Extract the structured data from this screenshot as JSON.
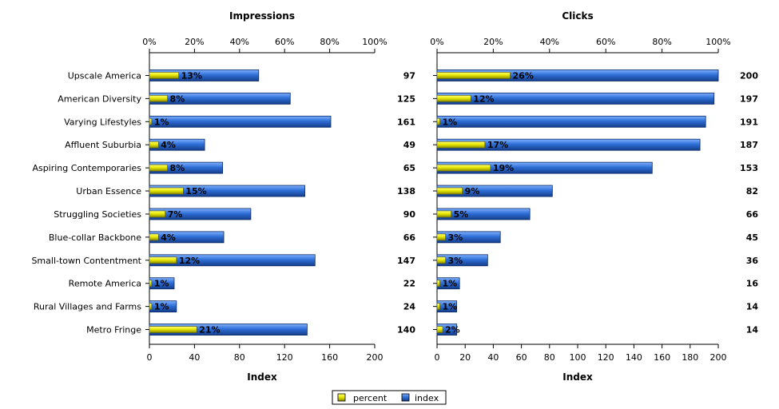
{
  "chart_data": {
    "type": "bar",
    "legend": {
      "position": "bottom",
      "entries": [
        {
          "name": "percent",
          "color": "#e8e800"
        },
        {
          "name": "index",
          "color": "#2f6fd6"
        }
      ]
    },
    "categories": [
      "Upscale America",
      "American Diversity",
      "Varying Lifestyles",
      "Affluent Suburbia",
      "Aspiring Contemporaries",
      "Urban Essence",
      "Struggling Societies",
      "Blue-collar Backbone",
      "Small-town Contentment",
      "Remote America",
      "Rural Villages and Farms",
      "Metro Fringe"
    ],
    "panels": [
      {
        "title": "Impressions",
        "xlabel": "Index",
        "index_ticks": [
          "0",
          "40",
          "80",
          "120",
          "160",
          "200"
        ],
        "percent_ticks": [
          "0%",
          "20%",
          "40%",
          "60%",
          "80%",
          "100%"
        ],
        "index_range": [
          0,
          200
        ],
        "percent_range": [
          0,
          100
        ],
        "percent_values": [
          13,
          8,
          1,
          4,
          8,
          15,
          7,
          4,
          12,
          1,
          1,
          21
        ],
        "percent_labels": [
          "13%",
          "8%",
          "1%",
          "4%",
          "8%",
          "15%",
          "7%",
          "4%",
          "12%",
          "1%",
          "1%",
          "21%"
        ],
        "index_values": [
          97,
          125,
          161,
          49,
          65,
          138,
          90,
          66,
          147,
          22,
          24,
          140
        ],
        "index_labels": [
          "97",
          "125",
          "161",
          "49",
          "65",
          "138",
          "90",
          "66",
          "147",
          "22",
          "24",
          "140"
        ]
      },
      {
        "title": "Clicks",
        "xlabel": "Index",
        "index_ticks": [
          "0",
          "20",
          "40",
          "60",
          "80",
          "100",
          "120",
          "140",
          "160",
          "180",
          "200"
        ],
        "percent_ticks": [
          "0%",
          "20%",
          "40%",
          "60%",
          "80%",
          "100%"
        ],
        "index_range": [
          0,
          200
        ],
        "percent_range": [
          0,
          100
        ],
        "percent_values": [
          26,
          12,
          1,
          17,
          19,
          9,
          5,
          3,
          3,
          1,
          1,
          2
        ],
        "percent_labels": [
          "26%",
          "12%",
          "1%",
          "17%",
          "19%",
          "9%",
          "5%",
          "3%",
          "3%",
          "1%",
          "1%",
          "2%"
        ],
        "index_values": [
          200,
          197,
          191,
          187,
          153,
          82,
          66,
          45,
          36,
          16,
          14,
          14
        ],
        "index_labels": [
          "200",
          "197",
          "191",
          "187",
          "153",
          "82",
          "66",
          "45",
          "36",
          "16",
          "14",
          "14"
        ]
      }
    ]
  }
}
